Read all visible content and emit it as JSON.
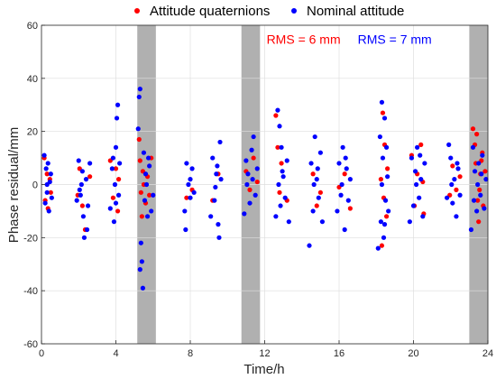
{
  "chart_data": {
    "type": "scatter",
    "title": "",
    "xlabel": "Time/h",
    "ylabel": "Phase residual/mm",
    "xlim": [
      0,
      24
    ],
    "ylim": [
      -60,
      60
    ],
    "x_ticks": [
      0,
      4,
      8,
      12,
      16,
      20,
      24
    ],
    "y_ticks": [
      -60,
      -40,
      -20,
      0,
      20,
      40,
      60
    ],
    "x_tick_labels": [
      "0",
      "4",
      "8",
      "12",
      "16",
      "20",
      "24"
    ],
    "y_tick_labels": [
      "-60",
      "-40",
      "-20",
      "0",
      "20",
      "40",
      "60"
    ],
    "grid": true,
    "legend_position": "top",
    "shaded_intervals": [
      [
        5.15,
        6.15
      ],
      [
        10.75,
        11.75
      ],
      [
        23.0,
        24.0
      ]
    ],
    "shade_color": "#b0b0b0",
    "annotations": [
      {
        "text": "RMS = 6 mm",
        "color": "#ff0000",
        "x": 12.1,
        "y": 53
      },
      {
        "text": "RMS = 7 mm",
        "color": "#0000ff",
        "x": 17.0,
        "y": 53
      }
    ],
    "series": [
      {
        "name": "Attitude quaternions",
        "color": "#ff0000",
        "points": [
          [
            0.15,
            10
          ],
          [
            0.2,
            -6
          ],
          [
            0.3,
            4
          ],
          [
            0.35,
            -9
          ],
          [
            0.45,
            2
          ],
          [
            0.5,
            -3
          ],
          [
            1.95,
            -4
          ],
          [
            2.05,
            6
          ],
          [
            2.2,
            -8
          ],
          [
            2.35,
            -17
          ],
          [
            2.6,
            3
          ],
          [
            3.7,
            9
          ],
          [
            3.85,
            -5
          ],
          [
            4.0,
            6
          ],
          [
            4.1,
            -10
          ],
          [
            4.15,
            2
          ],
          [
            5.25,
            17
          ],
          [
            5.3,
            9
          ],
          [
            5.35,
            -3
          ],
          [
            5.4,
            -12
          ],
          [
            5.45,
            5
          ],
          [
            5.5,
            0
          ],
          [
            5.6,
            -7
          ],
          [
            5.7,
            3
          ],
          [
            5.8,
            -4
          ],
          [
            5.9,
            10
          ],
          [
            7.8,
            -5
          ],
          [
            8.1,
            -2
          ],
          [
            9.2,
            -6
          ],
          [
            9.5,
            4
          ],
          [
            11.0,
            5
          ],
          [
            11.2,
            -2
          ],
          [
            11.4,
            10
          ],
          [
            11.6,
            1
          ],
          [
            12.6,
            26
          ],
          [
            12.7,
            14
          ],
          [
            12.8,
            -3
          ],
          [
            12.9,
            8
          ],
          [
            13.2,
            -6
          ],
          [
            14.6,
            4
          ],
          [
            14.8,
            -8
          ],
          [
            15.0,
            -3
          ],
          [
            16.0,
            -1
          ],
          [
            16.3,
            4
          ],
          [
            16.6,
            -9
          ],
          [
            18.3,
            -23
          ],
          [
            18.35,
            27
          ],
          [
            18.45,
            15
          ],
          [
            18.55,
            -12
          ],
          [
            18.4,
            -5
          ],
          [
            18.6,
            6
          ],
          [
            18.25,
            2
          ],
          [
            19.9,
            11
          ],
          [
            20.05,
            -8
          ],
          [
            20.2,
            4
          ],
          [
            20.4,
            15
          ],
          [
            20.55,
            -11
          ],
          [
            20.5,
            1
          ],
          [
            21.95,
            -4
          ],
          [
            22.1,
            7
          ],
          [
            22.3,
            -2
          ],
          [
            22.5,
            3
          ],
          [
            23.2,
            21
          ],
          [
            23.3,
            15
          ],
          [
            23.35,
            8
          ],
          [
            23.45,
            -6
          ],
          [
            23.5,
            -14
          ],
          [
            23.6,
            4
          ],
          [
            23.7,
            12
          ],
          [
            23.4,
            19
          ],
          [
            23.55,
            -2
          ],
          [
            23.65,
            9
          ],
          [
            23.75,
            -8
          ],
          [
            23.85,
            5
          ]
        ]
      },
      {
        "name": "Nominal attitude",
        "color": "#0000ff",
        "points": [
          [
            0.15,
            11
          ],
          [
            0.2,
            -7
          ],
          [
            0.25,
            6
          ],
          [
            0.3,
            -3
          ],
          [
            0.35,
            8
          ],
          [
            0.4,
            -10
          ],
          [
            0.45,
            1
          ],
          [
            0.5,
            4
          ],
          [
            0.55,
            -5
          ],
          [
            0.3,
            0
          ],
          [
            1.9,
            -6
          ],
          [
            2.0,
            9
          ],
          [
            2.1,
            -4
          ],
          [
            2.2,
            5
          ],
          [
            2.25,
            -12
          ],
          [
            2.3,
            -20
          ],
          [
            2.4,
            2
          ],
          [
            2.5,
            -8
          ],
          [
            2.6,
            8
          ],
          [
            2.45,
            -17
          ],
          [
            2.15,
            0
          ],
          [
            2.05,
            -2
          ],
          [
            3.7,
            -9
          ],
          [
            3.8,
            6
          ],
          [
            3.9,
            -14
          ],
          [
            4.0,
            14
          ],
          [
            4.05,
            25
          ],
          [
            4.1,
            30
          ],
          [
            4.15,
            -4
          ],
          [
            4.2,
            8
          ],
          [
            3.95,
            0
          ],
          [
            3.85,
            10
          ],
          [
            4.0,
            -7
          ],
          [
            5.2,
            21
          ],
          [
            5.25,
            33
          ],
          [
            5.3,
            36
          ],
          [
            5.35,
            -22
          ],
          [
            5.4,
            -29
          ],
          [
            5.45,
            -39
          ],
          [
            5.5,
            12
          ],
          [
            5.55,
            -6
          ],
          [
            5.6,
            4
          ],
          [
            5.7,
            -12
          ],
          [
            5.8,
            7
          ],
          [
            5.9,
            -10
          ],
          [
            6.0,
            -4
          ],
          [
            5.65,
            0
          ],
          [
            5.75,
            10
          ],
          [
            5.3,
            -32
          ],
          [
            7.7,
            -10
          ],
          [
            7.8,
            8
          ],
          [
            7.9,
            0
          ],
          [
            8.0,
            -5
          ],
          [
            8.1,
            6
          ],
          [
            8.2,
            -3
          ],
          [
            7.75,
            -17
          ],
          [
            8.0,
            2
          ],
          [
            9.1,
            -12
          ],
          [
            9.2,
            10
          ],
          [
            9.3,
            -6
          ],
          [
            9.4,
            4
          ],
          [
            9.5,
            -15
          ],
          [
            9.55,
            -20
          ],
          [
            9.6,
            16
          ],
          [
            9.65,
            2
          ],
          [
            9.35,
            -1
          ],
          [
            9.45,
            7
          ],
          [
            10.9,
            -11
          ],
          [
            11.0,
            9
          ],
          [
            11.1,
            4
          ],
          [
            11.2,
            -7
          ],
          [
            11.3,
            13
          ],
          [
            11.4,
            18
          ],
          [
            11.5,
            -4
          ],
          [
            11.6,
            6
          ],
          [
            11.05,
            0
          ],
          [
            11.35,
            2
          ],
          [
            12.6,
            -12
          ],
          [
            12.7,
            28
          ],
          [
            12.8,
            22
          ],
          [
            12.85,
            -8
          ],
          [
            12.9,
            14
          ],
          [
            13.0,
            3
          ],
          [
            13.1,
            -5
          ],
          [
            13.2,
            9
          ],
          [
            13.3,
            -14
          ],
          [
            12.75,
            0
          ],
          [
            12.95,
            5
          ],
          [
            14.4,
            -23
          ],
          [
            14.5,
            8
          ],
          [
            14.6,
            -10
          ],
          [
            14.7,
            18
          ],
          [
            14.8,
            2
          ],
          [
            14.9,
            -5
          ],
          [
            15.0,
            12
          ],
          [
            15.1,
            -14
          ],
          [
            14.65,
            0
          ],
          [
            14.85,
            6
          ],
          [
            15.9,
            -10
          ],
          [
            16.0,
            8
          ],
          [
            16.1,
            -4
          ],
          [
            16.2,
            14
          ],
          [
            16.3,
            -17
          ],
          [
            16.4,
            6
          ],
          [
            16.5,
            -6
          ],
          [
            16.6,
            2
          ],
          [
            16.15,
            0
          ],
          [
            16.35,
            10
          ],
          [
            18.1,
            -24
          ],
          [
            18.2,
            18
          ],
          [
            18.25,
            -14
          ],
          [
            18.3,
            31
          ],
          [
            18.35,
            10
          ],
          [
            18.4,
            -20
          ],
          [
            18.45,
            25
          ],
          [
            18.5,
            -6
          ],
          [
            18.55,
            14
          ],
          [
            18.6,
            3
          ],
          [
            18.65,
            -10
          ],
          [
            18.3,
            0
          ],
          [
            18.45,
            -15
          ],
          [
            19.8,
            -14
          ],
          [
            19.9,
            10
          ],
          [
            20.0,
            -8
          ],
          [
            20.1,
            5
          ],
          [
            20.2,
            14
          ],
          [
            20.3,
            -5
          ],
          [
            20.4,
            2
          ],
          [
            20.5,
            -12
          ],
          [
            20.6,
            8
          ],
          [
            20.15,
            0
          ],
          [
            20.35,
            11
          ],
          [
            21.8,
            -5
          ],
          [
            21.9,
            15
          ],
          [
            22.0,
            10
          ],
          [
            22.1,
            -7
          ],
          [
            22.2,
            2
          ],
          [
            22.3,
            -12
          ],
          [
            22.4,
            6
          ],
          [
            22.5,
            -4
          ],
          [
            22.05,
            0
          ],
          [
            22.35,
            8
          ],
          [
            23.1,
            -17
          ],
          [
            23.2,
            14
          ],
          [
            23.3,
            5
          ],
          [
            23.4,
            -10
          ],
          [
            23.5,
            8
          ],
          [
            23.6,
            -4
          ],
          [
            23.7,
            11
          ],
          [
            23.8,
            -9
          ],
          [
            23.9,
            2
          ],
          [
            23.45,
            0
          ],
          [
            23.25,
            -6
          ],
          [
            23.65,
            4
          ]
        ]
      }
    ]
  }
}
